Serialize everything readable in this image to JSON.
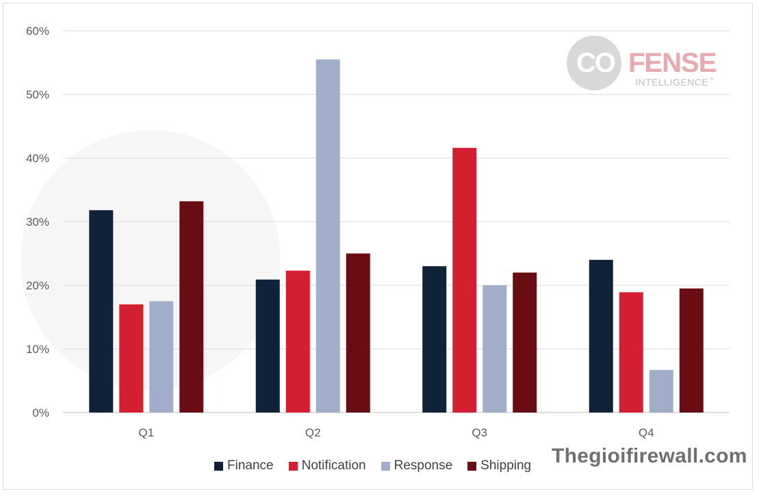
{
  "chart_data": {
    "type": "bar",
    "title": "",
    "xlabel": "",
    "ylabel": "",
    "categories": [
      "Q1",
      "Q2",
      "Q3",
      "Q4"
    ],
    "series": [
      {
        "name": "Finance",
        "color": "#10223a",
        "values": [
          31.8,
          20.9,
          23.0,
          24.0
        ]
      },
      {
        "name": "Notification",
        "color": "#d41f30",
        "values": [
          17.0,
          22.3,
          41.6,
          18.9
        ]
      },
      {
        "name": "Response",
        "color": "#a0aec9",
        "values": [
          17.5,
          55.5,
          20.0,
          6.7
        ]
      },
      {
        "name": "Shipping",
        "color": "#6a0d12",
        "values": [
          33.2,
          25.0,
          22.0,
          19.5
        ]
      }
    ],
    "ylim": [
      0,
      60
    ],
    "yticks": [
      0,
      10,
      20,
      30,
      40,
      50,
      60
    ],
    "ytick_labels": [
      "0%",
      "10%",
      "20%",
      "30%",
      "40%",
      "50%",
      "60%"
    ],
    "grid": true,
    "legend_position": "bottom"
  },
  "logo": {
    "brand_part1": "CO",
    "brand_part2": "FENSE",
    "subtitle": "INTELLIGENCE",
    "trademark": "™"
  },
  "watermark_site": "Thegioifirewall.com"
}
